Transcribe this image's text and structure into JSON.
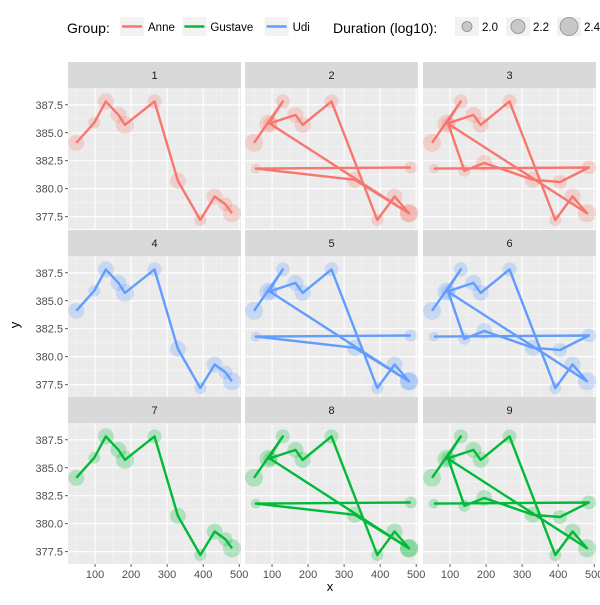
{
  "chart_data": {
    "type": "line",
    "xlabel": "x",
    "ylabel": "y",
    "xlim": [
      25,
      505
    ],
    "ylim": [
      376.4,
      389.0
    ],
    "xticks": [
      100,
      200,
      300,
      400,
      500
    ],
    "yticks": [
      377.5,
      380.0,
      382.5,
      385.0,
      387.5
    ],
    "ytick_labels": [
      "377.5",
      "380.0",
      "382.5",
      "385.0",
      "387.5"
    ],
    "grid": true,
    "legend": {
      "placement": "top",
      "group_title": "Group:",
      "size_title": "Duration (log10):",
      "groups": [
        {
          "name": "Anne",
          "color": "#F8766D"
        },
        {
          "name": "Gustave",
          "color": "#00BA38"
        },
        {
          "name": "Udi",
          "color": "#619CFF"
        }
      ],
      "sizes": [
        {
          "label": "2.0",
          "value": 2.0
        },
        {
          "label": "2.2",
          "value": 2.2
        },
        {
          "label": "2.4",
          "value": 2.4
        }
      ]
    },
    "panels": [
      {
        "label": "1",
        "group": "Anne",
        "path": "A"
      },
      {
        "label": "2",
        "group": "Anne",
        "path": "B"
      },
      {
        "label": "3",
        "group": "Anne",
        "path": "C"
      },
      {
        "label": "4",
        "group": "Udi",
        "path": "A"
      },
      {
        "label": "5",
        "group": "Udi",
        "path": "B"
      },
      {
        "label": "6",
        "group": "Udi",
        "path": "C"
      },
      {
        "label": "7",
        "group": "Gustave",
        "path": "A"
      },
      {
        "label": "8",
        "group": "Gustave",
        "path": "B"
      },
      {
        "label": "9",
        "group": "Gustave",
        "path": "C"
      }
    ],
    "paths": {
      "A": [
        {
          "x": 48,
          "y": 384.1,
          "d": 2.3
        },
        {
          "x": 98,
          "y": 385.9,
          "d": 2.1
        },
        {
          "x": 130,
          "y": 387.8,
          "d": 2.3
        },
        {
          "x": 165,
          "y": 386.6,
          "d": 2.3
        },
        {
          "x": 183,
          "y": 385.7,
          "d": 2.4
        },
        {
          "x": 265,
          "y": 387.8,
          "d": 2.2
        },
        {
          "x": 330,
          "y": 380.7,
          "d": 2.3
        },
        {
          "x": 392,
          "y": 377.2,
          "d": 2.1
        },
        {
          "x": 432,
          "y": 379.3,
          "d": 2.3
        },
        {
          "x": 462,
          "y": 378.6,
          "d": 2.2
        },
        {
          "x": 480,
          "y": 377.8,
          "d": 2.4
        }
      ],
      "B": [
        {
          "x": 50,
          "y": 384.1,
          "d": 2.4
        },
        {
          "x": 130,
          "y": 387.8,
          "d": 2.2
        },
        {
          "x": 90,
          "y": 385.8,
          "d": 2.4
        },
        {
          "x": 165,
          "y": 386.6,
          "d": 2.3
        },
        {
          "x": 185,
          "y": 385.7,
          "d": 2.3
        },
        {
          "x": 265,
          "y": 387.8,
          "d": 2.2
        },
        {
          "x": 392,
          "y": 377.2,
          "d": 2.1
        },
        {
          "x": 440,
          "y": 379.3,
          "d": 2.3
        },
        {
          "x": 480,
          "y": 377.8,
          "d": 2.4
        },
        {
          "x": 95,
          "y": 385.8,
          "d": 2.2
        },
        {
          "x": 480,
          "y": 377.8,
          "d": 2.4
        },
        {
          "x": 330,
          "y": 380.8,
          "d": 2.3
        },
        {
          "x": 55,
          "y": 381.8,
          "d": 2.0
        },
        {
          "x": 485,
          "y": 381.9,
          "d": 2.1
        }
      ],
      "C": [
        {
          "x": 50,
          "y": 384.1,
          "d": 2.4
        },
        {
          "x": 130,
          "y": 387.8,
          "d": 2.2
        },
        {
          "x": 90,
          "y": 385.8,
          "d": 2.4
        },
        {
          "x": 165,
          "y": 386.6,
          "d": 2.3
        },
        {
          "x": 185,
          "y": 385.7,
          "d": 2.3
        },
        {
          "x": 265,
          "y": 387.8,
          "d": 2.2
        },
        {
          "x": 392,
          "y": 377.2,
          "d": 2.1
        },
        {
          "x": 440,
          "y": 379.3,
          "d": 2.3
        },
        {
          "x": 480,
          "y": 377.8,
          "d": 2.4
        },
        {
          "x": 95,
          "y": 385.8,
          "d": 2.2
        },
        {
          "x": 140,
          "y": 381.6,
          "d": 2.1
        },
        {
          "x": 195,
          "y": 382.3,
          "d": 2.3
        },
        {
          "x": 330,
          "y": 380.8,
          "d": 2.3
        },
        {
          "x": 405,
          "y": 380.6,
          "d": 2.2
        },
        {
          "x": 485,
          "y": 381.9,
          "d": 2.2
        },
        {
          "x": 55,
          "y": 381.8,
          "d": 2.0
        }
      ]
    }
  }
}
